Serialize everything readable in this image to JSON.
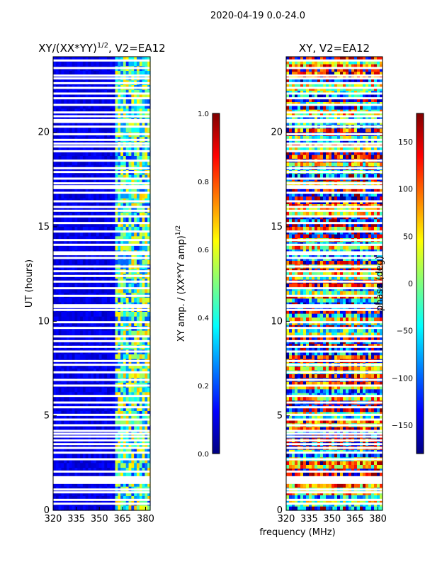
{
  "figure": {
    "suptitle": "2020-04-19 0.0-24.0",
    "xlabel": "frequency (MHz)",
    "ylabel": "UT (hours)"
  },
  "colors": {
    "jet": [
      "#00007f",
      "#0000ff",
      "#007fff",
      "#00ffff",
      "#7fff7f",
      "#ffff00",
      "#ff7f00",
      "#ff0000",
      "#7f0000"
    ],
    "gap": "#ffffff",
    "axis": "#000000"
  },
  "chart_data": [
    {
      "type": "heatmap",
      "title_prefix": "XY/(XX*YY)",
      "title_exponent": "1/2",
      "title_suffix": ", V2=EA12",
      "x": {
        "ticks": [
          320,
          335,
          350,
          365,
          380
        ],
        "range": [
          320,
          383
        ]
      },
      "y": {
        "ticks": [
          0,
          5,
          10,
          15,
          20
        ],
        "range": [
          0,
          24
        ]
      },
      "colorbar": {
        "label_main": "XY amp. / (XX*YY amp)",
        "label_exponent": "1/2",
        "range": [
          0.0,
          1.0
        ],
        "tick_labels": [
          "0.0",
          "0.2",
          "0.4",
          "0.6",
          "0.8",
          "1.0"
        ]
      },
      "structure": {
        "low_value_region_mhz": [
          320,
          359
        ],
        "low_value": 0.06,
        "high_value_region_mhz": [
          359,
          383
        ],
        "high_value_range": [
          0.15,
          0.7
        ]
      }
    },
    {
      "type": "heatmap",
      "title": "XY, V2=EA12",
      "x": {
        "ticks": [
          320,
          335,
          350,
          365,
          380
        ],
        "range": [
          320,
          383
        ]
      },
      "y": {
        "ticks": [
          0,
          5,
          10,
          15,
          20
        ],
        "range": [
          0,
          24
        ]
      },
      "colorbar": {
        "label": "phase (deg)",
        "range": [
          -180,
          180
        ],
        "tick_labels": [
          "−150",
          "−100",
          "−50",
          "0",
          "50",
          "100",
          "150"
        ],
        "tick_values": [
          -150,
          -100,
          -50,
          0,
          50,
          100,
          150
        ]
      }
    }
  ],
  "gap_rows_ut": [
    0.35,
    0.55,
    0.95,
    1.1,
    1.45,
    1.55,
    1.65,
    1.75,
    2.05,
    2.7,
    3.05,
    3.3,
    3.5,
    3.7,
    3.9,
    4.05,
    4.2,
    4.5,
    4.8,
    5.05,
    5.45,
    5.7,
    6.05,
    6.6,
    6.9,
    7.3,
    7.7,
    7.9,
    8.4,
    8.65,
    8.95,
    9.2,
    9.65,
    9.95,
    10.6,
    10.75,
    10.85,
    11.35,
    11.75,
    12.1,
    12.4,
    12.65,
    12.9,
    13.35,
    13.55,
    13.65,
    14.05,
    14.3,
    14.75,
    15.2,
    15.55,
    15.85,
    16.05,
    16.35,
    16.8,
    17.05,
    17.15,
    17.3,
    17.55,
    17.9,
    18.1,
    18.5,
    19.0,
    19.25,
    19.4,
    19.6,
    19.9,
    20.3,
    20.55,
    20.65,
    20.85,
    21.05,
    21.45,
    21.8,
    22.05,
    22.35,
    22.6,
    22.85,
    23.0,
    23.4,
    23.8
  ]
}
